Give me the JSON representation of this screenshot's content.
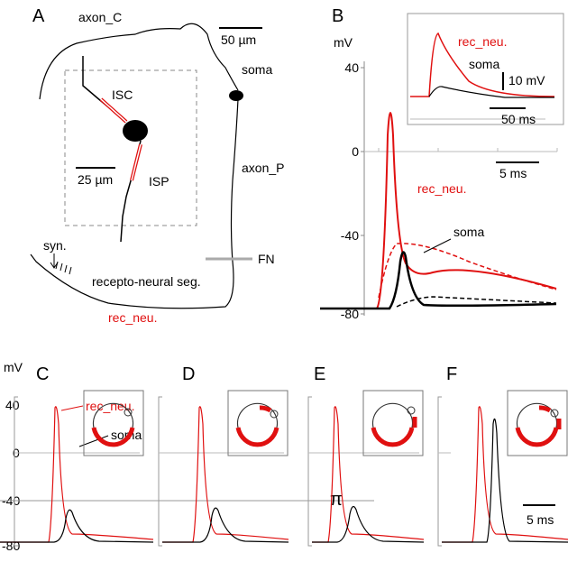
{
  "panel_a": {
    "label": "A",
    "axon_c": "axon_C",
    "scale_large": "50 µm",
    "soma": "soma",
    "isc": "ISC",
    "scale_small": "25 µm",
    "isp": "ISP",
    "axon_p": "axon_P",
    "fn": "FN",
    "syn": "syn.",
    "segment": "recepto-neural seg.",
    "rec_neu": "rec_neu."
  },
  "panel_b": {
    "label": "B",
    "unit": "mV",
    "yticks": [
      "40",
      "0",
      "-40",
      "-80"
    ],
    "inset_rec_neu": "rec_neu.",
    "inset_soma": "soma",
    "inset_scale_v": "10 mV",
    "inset_scale_t": "50 ms",
    "scale_t": "5 ms",
    "rec_neu": "rec_neu.",
    "soma": "soma"
  },
  "panels_bottom": {
    "unit": "mV",
    "yticks": [
      "40",
      "0",
      "-40",
      "-80"
    ],
    "labels": [
      "C",
      "D",
      "E",
      "F"
    ],
    "rec_neu": "rec_neu.",
    "soma": "soma",
    "threshold": "π",
    "scale_t": "5 ms"
  }
}
